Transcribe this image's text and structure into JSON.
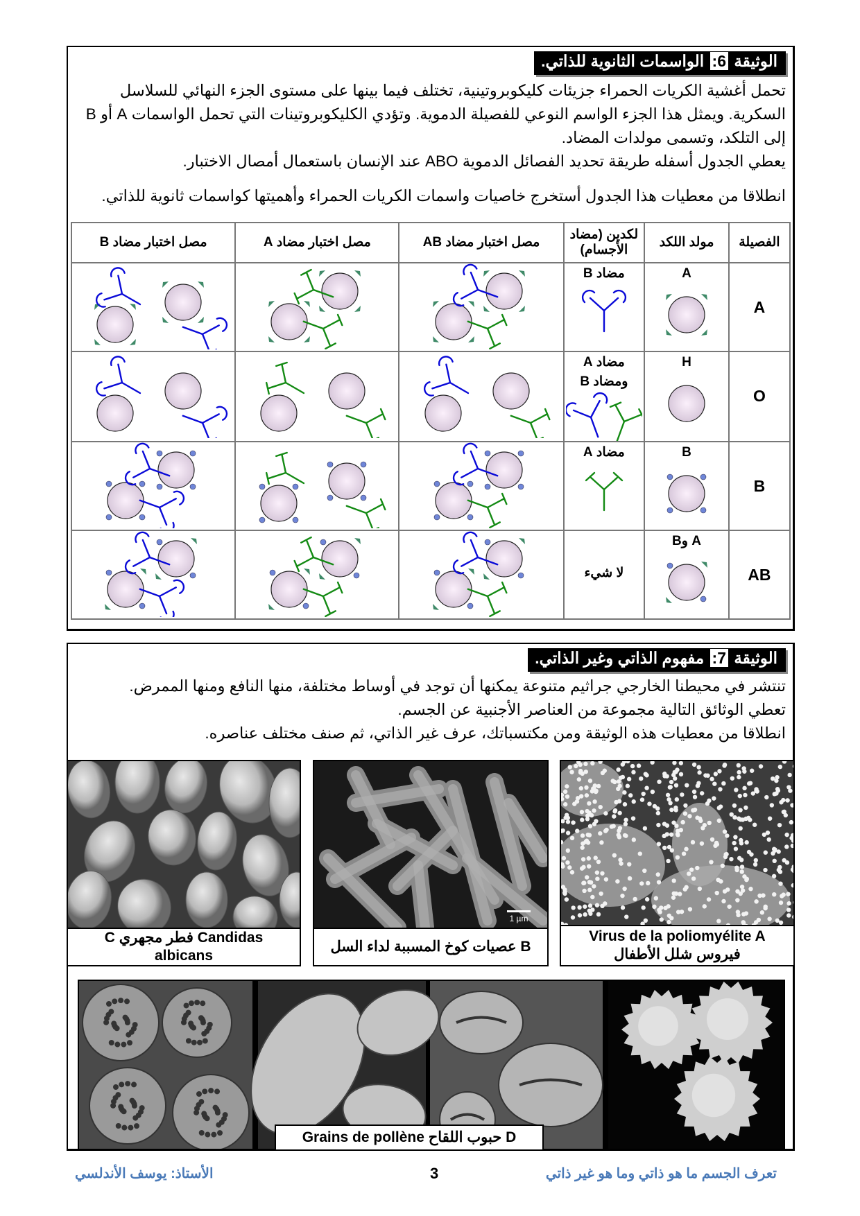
{
  "doc6": {
    "title_prefix": "الوثيقة",
    "title_num": "6:",
    "title_text": "الواسمات الثانوية للذاتي.",
    "para_lines": [
      "تحمل أغشية الكريات الحمراء جزيئات كليكوبروتينية، تختلف فيما بينها على مستوى الجزء النهائي للسلاسل",
      "السكرية. ويمثل هذا الجزء الواسم النوعي للفصيلة الدموية. وتؤدي الكليكوبروتينات التي تحمل الواسمات A أو B",
      "إلى التلكد، وتسمى مولدات المضاد.",
      "يعطي الجدول أسفله طريقة تحديد الفصائل الدموية ABO عند الإنسان باستعمال أمصال الاختبار."
    ],
    "question": "انطلاقا من معطيات هذا الجدول أستخرج خاصيات واسمات الكريات الحمراء وأهميتها كواسمات ثانوية للذاتي.",
    "table": {
      "headers": [
        "الفصيلة",
        "مولد اللكد",
        "لكدين (مضاد الأجسام)",
        "مصل اختبار مضاد AB",
        "مصل اختبار مضاد A",
        "مصل اختبار مضاد B"
      ],
      "rows": [
        {
          "group": "A",
          "antigen": "A",
          "antibody_lines": [
            "مضاد B"
          ],
          "antibodies": [
            "anti-B"
          ],
          "tests": {
            "anti_AB": "agglutination",
            "anti_A": "agglutination",
            "anti_B": "no agglutination"
          }
        },
        {
          "group": "O",
          "antigen": "H",
          "antibody_lines": [
            "مضاد A",
            "ومضاد B"
          ],
          "antibodies": [
            "anti-B",
            "anti-A"
          ],
          "tests": {
            "anti_AB": "no agglutination",
            "anti_A": "no agglutination",
            "anti_B": "no agglutination"
          }
        },
        {
          "group": "B",
          "antigen": "B",
          "antibody_lines": [
            "مضاد A"
          ],
          "antibodies": [
            "anti-A"
          ],
          "tests": {
            "anti_AB": "agglutination",
            "anti_A": "no agglutination",
            "anti_B": "agglutination"
          }
        },
        {
          "group": "AB",
          "antigen": "A وB",
          "antibody_lines": [
            "لا شيء"
          ],
          "antibodies": [],
          "tests": {
            "anti_AB": "agglutination",
            "anti_A": "agglutination",
            "anti_B": "agglutination"
          }
        }
      ]
    }
  },
  "doc7": {
    "title_prefix": "الوثيقة",
    "title_num": "7:",
    "title_text": "مفهوم الذاتي وغير الذاتي.",
    "para_lines": [
      "تنتشر في محيطنا الخارجي جراثيم متنوعة يمكنها أن توجد في أوساط مختلفة، منها النافع ومنها الممرض.",
      "تعطي الوثائق التالية مجموعة من العناصر الأجنبية عن الجسم.",
      "انطلاقا من معطيات هذه الوثيقة ومن مكتسباتك، عرف غير الذاتي، ثم صنف مختلف عناصره."
    ],
    "images": {
      "C": {
        "line1": "C  فطر مجهري  Candidas",
        "line2": "albicans"
      },
      "B": {
        "line1": "B عصيات كوخ المسببة لداء السل",
        "scale": "1 µm"
      },
      "A": {
        "line1": "Virus de la poliomyélite  A",
        "line2": "فيروس شلل الأطفال"
      },
      "D": {
        "line1": "Grains de pollène حبوب اللقاح D"
      }
    }
  },
  "footer": {
    "right": "تعرف الجسم ما هو ذاتي وما هو غير ذاتي",
    "page": "3",
    "left": "الأستاذ: يوسف الأندلسي"
  },
  "colors": {
    "anti_A": "#138a13",
    "anti_B": "#0a0ad8",
    "antigen_A": "#3f8a68",
    "antigen_B": "#6f86d8",
    "rbc": "#e8dbe9",
    "footer": "#4a7ab8"
  }
}
